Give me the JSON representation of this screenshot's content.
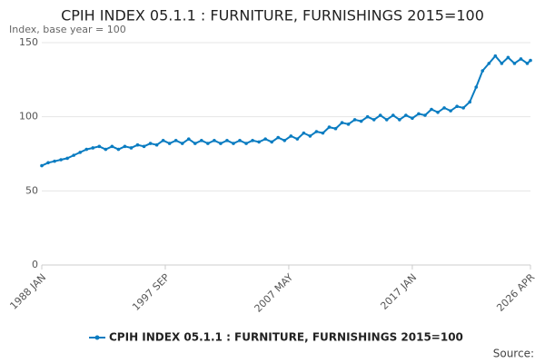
{
  "chart_data": {
    "type": "line",
    "title": "CPIH INDEX 05.1.1 : FURNITURE, FURNISHINGS 2015=100",
    "subtitle": "Index, base year = 100",
    "source": "Source:",
    "x": [
      1988.0,
      1988.5,
      1989.0,
      1989.5,
      1990.0,
      1990.5,
      1991.0,
      1991.5,
      1992.0,
      1992.5,
      1993.0,
      1993.5,
      1994.0,
      1994.5,
      1995.0,
      1995.5,
      1996.0,
      1996.5,
      1997.0,
      1997.5,
      1998.0,
      1998.5,
      1999.0,
      1999.5,
      2000.0,
      2000.5,
      2001.0,
      2001.5,
      2002.0,
      2002.5,
      2003.0,
      2003.5,
      2004.0,
      2004.5,
      2005.0,
      2005.5,
      2006.0,
      2006.5,
      2007.0,
      2007.5,
      2008.0,
      2008.5,
      2009.0,
      2009.5,
      2010.0,
      2010.5,
      2011.0,
      2011.5,
      2012.0,
      2012.5,
      2013.0,
      2013.5,
      2014.0,
      2014.5,
      2015.0,
      2015.5,
      2016.0,
      2016.5,
      2017.0,
      2017.5,
      2018.0,
      2018.5,
      2019.0,
      2019.5,
      2020.0,
      2020.5,
      2021.0,
      2021.5,
      2022.0,
      2022.5,
      2023.0,
      2023.5,
      2024.0,
      2024.5,
      2025.0,
      2025.5,
      2026.0,
      2026.25
    ],
    "series": [
      {
        "name": "CPIH INDEX 05.1.1 : FURNITURE, FURNISHINGS 2015=100",
        "color": "#0a7cc1",
        "values": [
          67,
          69,
          70,
          71,
          72,
          74,
          76,
          78,
          79,
          80,
          78,
          80,
          78,
          80,
          79,
          81,
          80,
          82,
          81,
          84,
          82,
          84,
          82,
          85,
          82,
          84,
          82,
          84,
          82,
          84,
          82,
          84,
          82,
          84,
          83,
          85,
          83,
          86,
          84,
          87,
          85,
          89,
          87,
          90,
          89,
          93,
          92,
          96,
          95,
          98,
          97,
          100,
          98,
          101,
          98,
          101,
          98,
          101,
          99,
          102,
          101,
          105,
          103,
          106,
          104,
          107,
          106,
          110,
          120,
          131,
          136,
          141,
          136,
          140,
          136,
          139,
          136,
          138
        ]
      }
    ],
    "xlim": [
      1988.0,
      2026.25
    ],
    "xticks": [
      {
        "value": 1988.0,
        "label": "1988 JAN"
      },
      {
        "value": 1997.667,
        "label": "1997 SEP"
      },
      {
        "value": 2007.333,
        "label": "2007 MAY"
      },
      {
        "value": 2017.0,
        "label": "2017 JAN"
      },
      {
        "value": 2026.25,
        "label": "2026 APR"
      }
    ],
    "ylim": [
      0,
      150
    ],
    "yticks": [
      0,
      50,
      100,
      150
    ],
    "grid": true
  }
}
